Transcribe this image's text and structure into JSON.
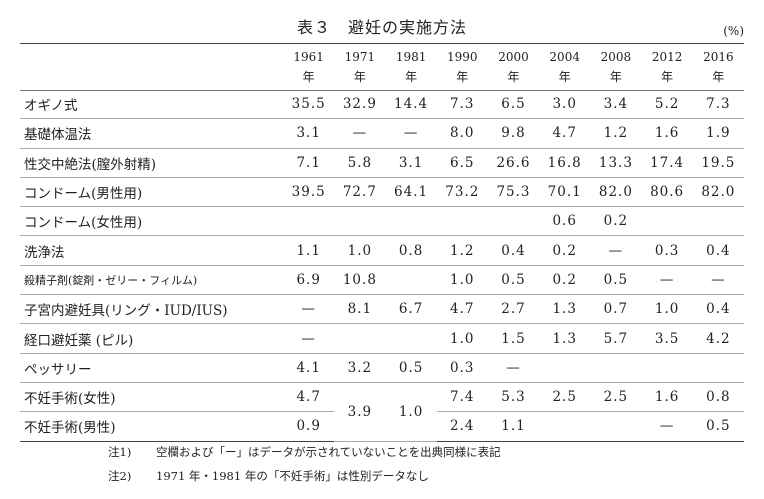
{
  "title": "表３　避妊の実施方法",
  "unit": "(%)",
  "year_suffix": "年",
  "years": [
    "1961",
    "1971",
    "1981",
    "1990",
    "2000",
    "2004",
    "2008",
    "2012",
    "2016"
  ],
  "rows": [
    {
      "label": "オギノ式",
      "values": [
        "35.5",
        "32.9",
        "14.4",
        "7.3",
        "6.5",
        "3.0",
        "3.4",
        "5.2",
        "7.3"
      ]
    },
    {
      "label": "基礎体温法",
      "values": [
        "3.1",
        "—",
        "—",
        "8.0",
        "9.8",
        "4.7",
        "1.2",
        "1.6",
        "1.9"
      ]
    },
    {
      "label": "性交中絶法(膣外射精)",
      "values": [
        "7.1",
        "5.8",
        "3.1",
        "6.5",
        "26.6",
        "16.8",
        "13.3",
        "17.4",
        "19.5"
      ]
    },
    {
      "label": "コンドーム(男性用)",
      "values": [
        "39.5",
        "72.7",
        "64.1",
        "73.2",
        "75.3",
        "70.1",
        "82.0",
        "80.6",
        "82.0"
      ]
    },
    {
      "label": "コンドーム(女性用)",
      "values": [
        "",
        "",
        "",
        "",
        "",
        "0.6",
        "0.2",
        "",
        ""
      ]
    },
    {
      "label": "洗浄法",
      "values": [
        "1.1",
        "1.0",
        "0.8",
        "1.2",
        "0.4",
        "0.2",
        "—",
        "0.3",
        "0.4"
      ]
    },
    {
      "label": "殺精子剤(錠剤・ゼリー・フィルム)",
      "small": true,
      "values": [
        "6.9",
        "10.8",
        "",
        "1.0",
        "0.5",
        "0.2",
        "0.5",
        "—",
        "—"
      ]
    },
    {
      "label": "子宮内避妊具(リング・IUD/IUS)",
      "values": [
        "—",
        "8.1",
        "6.7",
        "4.7",
        "2.7",
        "1.3",
        "0.7",
        "1.0",
        "0.4"
      ]
    },
    {
      "label": "経口避妊薬 (ピル)",
      "values": [
        "—",
        "",
        "",
        "1.0",
        "1.5",
        "1.3",
        "5.7",
        "3.5",
        "4.2"
      ]
    },
    {
      "label": "ペッサリー",
      "values": [
        "4.1",
        "3.2",
        "0.5",
        "0.3",
        "—",
        "",
        "",
        "",
        ""
      ]
    },
    {
      "label": "不妊手術(女性)",
      "values": [
        "4.7",
        "3.9",
        "1.0",
        "7.4",
        "5.3",
        "2.5",
        "2.5",
        "1.6",
        "0.8"
      ]
    },
    {
      "label": "不妊手術(男性)",
      "values": [
        "0.9",
        "",
        "",
        "2.4",
        "1.1",
        "",
        "",
        "—",
        "0.5"
      ]
    }
  ],
  "notes": [
    {
      "key": "注1)",
      "text": "空欄および「ー」はデータが示されていないことを出典同様に表記"
    },
    {
      "key": "注2)",
      "text": "1971 年・1981 年の「不妊手術」は性別データなし"
    }
  ]
}
